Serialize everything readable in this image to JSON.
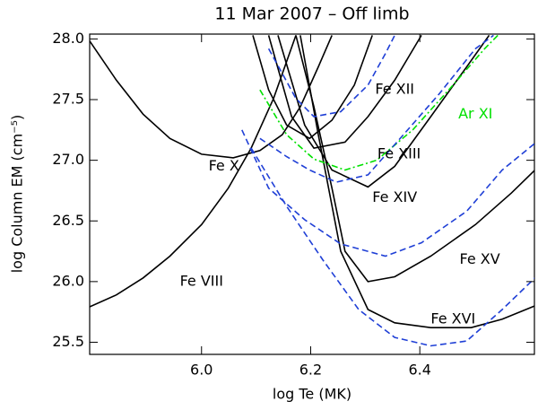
{
  "chart_data": {
    "type": "line",
    "title": "11 Mar 2007 – Off limb",
    "xlabel": "log Te (MK)",
    "ylabel": "log Column EM (cm⁻⁵)",
    "xlim": [
      5.795,
      6.61
    ],
    "ylim": [
      25.4,
      28.04
    ],
    "xticks": [
      {
        "value": 6.0,
        "label": "6.0"
      },
      6.2,
      6.4
    ],
    "yticks": [
      25.5,
      {
        "value": 26.0,
        "label": "26.0"
      },
      26.5,
      {
        "value": 27.0,
        "label": "27.0"
      },
      27.5,
      {
        "value": 28.0,
        "label": "28.0"
      }
    ],
    "series": [
      {
        "color": "#000000",
        "dash": "solid",
        "x": [
          5.794,
          5.844,
          5.893,
          5.942,
          6.0,
          6.049,
          6.091,
          6.132,
          6.173
        ],
        "values": [
          25.79,
          25.89,
          26.03,
          26.21,
          26.47,
          26.77,
          27.1,
          27.51,
          28.03
        ]
      },
      {
        "color": "#000000",
        "dash": "solid",
        "x": [
          5.794,
          5.844,
          5.893,
          5.942,
          6.0,
          6.058,
          6.107,
          6.148,
          6.181,
          6.214,
          6.239
        ],
        "values": [
          27.99,
          27.66,
          27.38,
          27.18,
          27.05,
          27.02,
          27.08,
          27.21,
          27.44,
          27.77,
          28.03
        ]
      },
      {
        "color": "#000000",
        "dash": "solid",
        "x": [
          6.094,
          6.123,
          6.156,
          6.198,
          6.239,
          6.28,
          6.313
        ],
        "values": [
          28.03,
          27.58,
          27.29,
          27.18,
          27.33,
          27.62,
          28.03
        ]
      },
      {
        "color": "#000000",
        "dash": "solid",
        "x": [
          6.123,
          6.165,
          6.206,
          6.263,
          6.305,
          6.354,
          6.403
        ],
        "values": [
          28.03,
          27.36,
          27.1,
          27.15,
          27.36,
          27.66,
          28.03
        ]
      },
      {
        "color": "#000000",
        "dash": "solid",
        "x": [
          6.14,
          6.189,
          6.239,
          6.305,
          6.354,
          6.42,
          6.486,
          6.527
        ],
        "values": [
          28.03,
          27.29,
          26.92,
          26.78,
          26.95,
          27.36,
          27.77,
          28.03
        ]
      },
      {
        "color": "#000000",
        "dash": "solid",
        "x": [
          6.173,
          6.206,
          6.239,
          6.263,
          6.305,
          6.354,
          6.42,
          6.502,
          6.568,
          6.611
        ],
        "values": [
          28.03,
          27.44,
          26.77,
          26.25,
          26.0,
          26.04,
          26.21,
          26.47,
          26.73,
          26.92
        ]
      },
      {
        "color": "#000000",
        "dash": "solid",
        "x": [
          6.181,
          6.214,
          6.255,
          6.305,
          6.354,
          6.42,
          6.494,
          6.551,
          6.611
        ],
        "values": [
          28.03,
          27.21,
          26.25,
          25.77,
          25.66,
          25.62,
          25.62,
          25.69,
          25.8
        ]
      },
      {
        "color": "#00e000",
        "dash": "dashdot",
        "x": [
          6.107,
          6.156,
          6.206,
          6.263,
          6.321,
          6.387,
          6.453,
          6.519,
          6.543
        ],
        "values": [
          27.58,
          27.21,
          27.01,
          26.92,
          27.0,
          27.25,
          27.58,
          27.92,
          28.03
        ]
      },
      {
        "color": "#1f3fd6",
        "dash": "dashed",
        "x": [
          6.123,
          6.173,
          6.206,
          6.255,
          6.305,
          6.337,
          6.354
        ],
        "values": [
          27.92,
          27.51,
          27.36,
          27.4,
          27.62,
          27.88,
          28.03
        ]
      },
      {
        "color": "#1f3fd6",
        "dash": "dashed",
        "x": [
          6.107,
          6.156,
          6.198,
          6.247,
          6.305,
          6.37,
          6.436,
          6.502,
          6.535
        ],
        "values": [
          27.18,
          27.03,
          26.92,
          26.82,
          26.88,
          27.21,
          27.55,
          27.92,
          28.03
        ]
      },
      {
        "color": "#1f3fd6",
        "dash": "dashed",
        "x": [
          6.074,
          6.123,
          6.189,
          6.255,
          6.337,
          6.403,
          6.486,
          6.551,
          6.611
        ],
        "values": [
          27.25,
          26.77,
          26.51,
          26.31,
          26.21,
          26.32,
          26.58,
          26.92,
          27.14
        ]
      },
      {
        "color": "#1f3fd6",
        "dash": "dashed",
        "x": [
          6.091,
          6.156,
          6.222,
          6.288,
          6.354,
          6.42,
          6.486,
          6.551,
          6.611
        ],
        "values": [
          27.1,
          26.62,
          26.18,
          25.77,
          25.54,
          25.47,
          25.51,
          25.77,
          26.03
        ]
      }
    ],
    "annotations": [
      {
        "text": "Fe VIII",
        "x": 6.0,
        "y": 26.0,
        "color": "#000000"
      },
      {
        "text": "Fe X",
        "x": 6.041,
        "y": 26.95,
        "color": "#000000"
      },
      {
        "text": "Fe XII",
        "x": 6.354,
        "y": 27.58,
        "color": "#000000"
      },
      {
        "text": "Ar XI",
        "x": 6.502,
        "y": 27.38,
        "color": "#00e000"
      },
      {
        "text": "Fe XIII",
        "x": 6.362,
        "y": 27.05,
        "color": "#000000"
      },
      {
        "text": "Fe XIV",
        "x": 6.354,
        "y": 26.69,
        "color": "#000000"
      },
      {
        "text": "Fe XV",
        "x": 6.51,
        "y": 26.18,
        "color": "#000000"
      },
      {
        "text": "Fe XVI",
        "x": 6.461,
        "y": 25.69,
        "color": "#000000"
      }
    ]
  }
}
